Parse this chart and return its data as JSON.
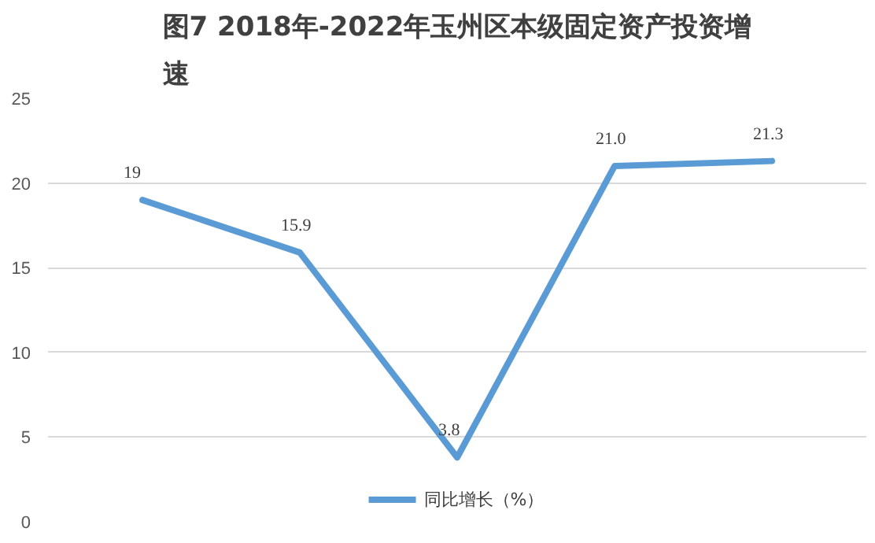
{
  "chart_data": {
    "type": "line",
    "title": "图7 2018年-2022年玉州区本级固定资产投资增速",
    "categories": [
      null,
      null,
      null,
      null,
      null
    ],
    "series": [
      {
        "name": "同比增长（%）",
        "color": "#5b9bd5",
        "values": [
          19,
          15.9,
          3.8,
          21.0,
          21.3
        ],
        "value_labels": [
          "19",
          "15.9",
          "3.8",
          "21.0",
          "21.3"
        ]
      }
    ],
    "ylim": [
      0,
      25
    ],
    "yticks": [
      0,
      5,
      10,
      15,
      20,
      25
    ],
    "grid": "y",
    "legend": "bottom",
    "tick_labels": "y",
    "marker": "none",
    "line_style": "solid"
  }
}
